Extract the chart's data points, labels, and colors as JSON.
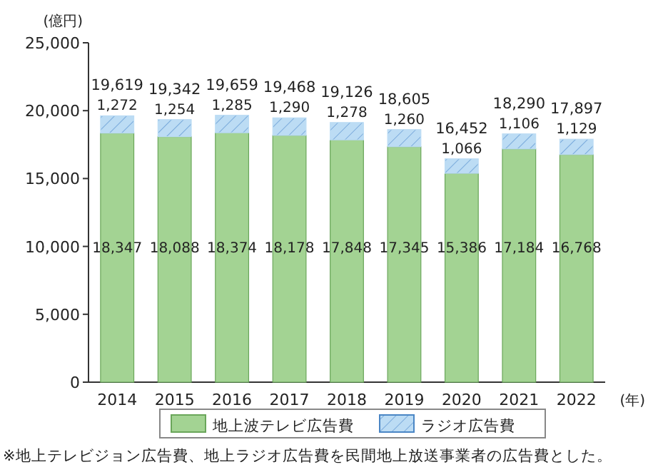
{
  "chart_data": {
    "type": "bar",
    "stacked": true,
    "ylabel": "(億円)",
    "xlabel": "(年)",
    "categories": [
      "2014",
      "2015",
      "2016",
      "2017",
      "2018",
      "2019",
      "2020",
      "2021",
      "2022"
    ],
    "series": [
      {
        "name": "地上波テレビ広告費",
        "color": "#a3d393",
        "values": [
          18347,
          18088,
          18374,
          18178,
          17848,
          17345,
          15386,
          17184,
          16768
        ],
        "value_labels": [
          "18,347",
          "18,088",
          "18,374",
          "18,178",
          "17,848",
          "17,345",
          "15,386",
          "17,184",
          "16,768"
        ]
      },
      {
        "name": "ラジオ広告費",
        "color": "#bcdcf4",
        "values": [
          1272,
          1254,
          1285,
          1290,
          1278,
          1260,
          1066,
          1106,
          1129
        ],
        "value_labels": [
          "1,272",
          "1,254",
          "1,285",
          "1,290",
          "1,278",
          "1,260",
          "1,066",
          "1,106",
          "1,129"
        ]
      }
    ],
    "totals": [
      "19,619",
      "19,342",
      "19,659",
      "19,468",
      "19,126",
      "18,605",
      "16,452",
      "18,290",
      "17,897"
    ],
    "ylim": [
      0,
      25000
    ],
    "yticks": [
      {
        "value": 0,
        "label": "0"
      },
      {
        "value": 5000,
        "label": "5,000"
      },
      {
        "value": 10000,
        "label": "10,000"
      },
      {
        "value": 15000,
        "label": "15,000"
      },
      {
        "value": 20000,
        "label": "20,000"
      },
      {
        "value": 25000,
        "label": "25,000"
      }
    ],
    "legend": "bottom",
    "annotations": [
      "※地上テレビジョン広告費、地上ラジオ広告費を民間地上放送事業者の広告費とした。"
    ]
  }
}
